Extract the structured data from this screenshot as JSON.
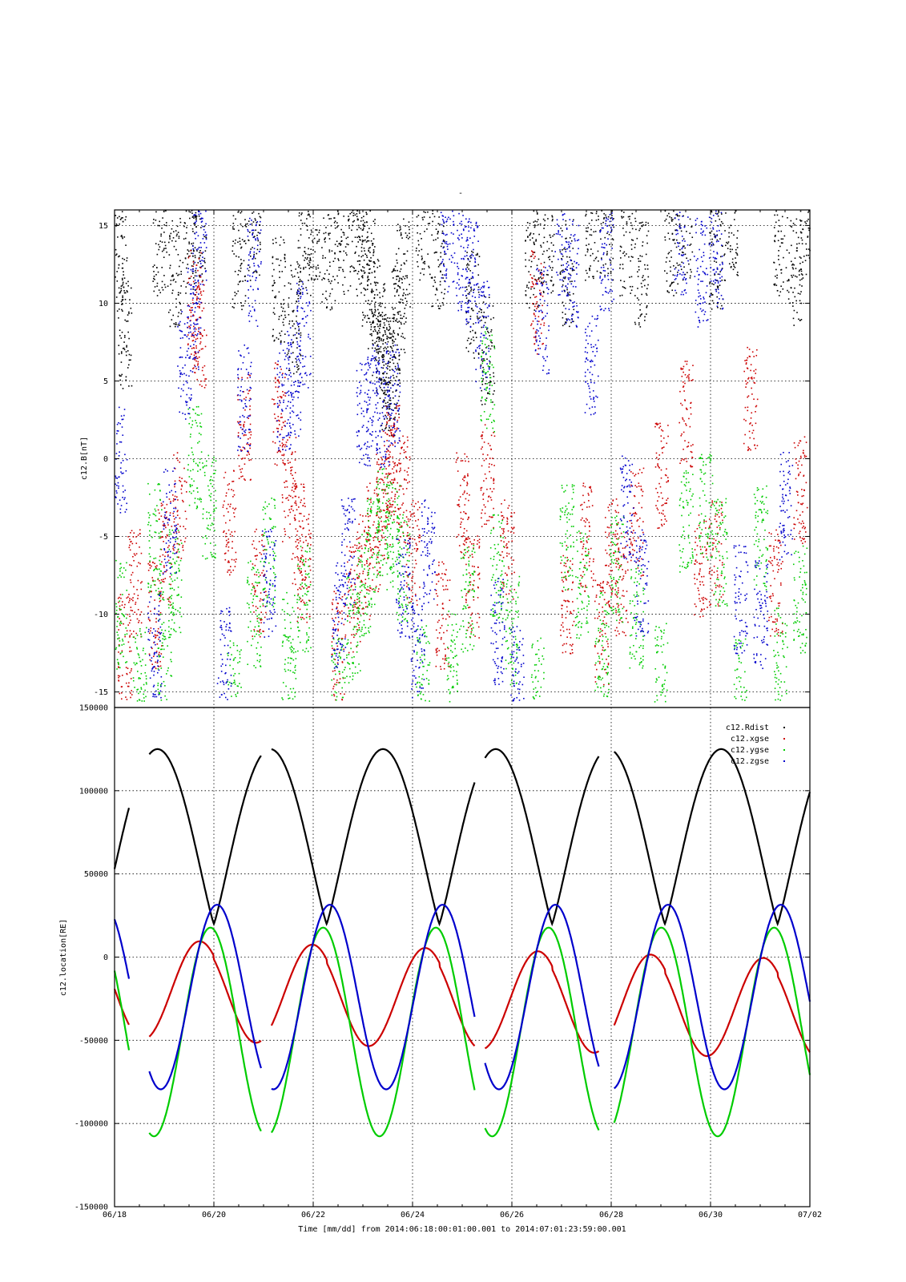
{
  "figure": {
    "top_title": "-",
    "xlabel": "Time [mm/dd]  from 2014:06:18:00:01:00.001  to  2014:07:01:23:59:00.001"
  },
  "chart_data": [
    {
      "type": "scatter",
      "ylabel": "c12.B[nT]",
      "xlim": [
        0,
        14
      ],
      "ylim": [
        -16,
        16
      ],
      "yticks": [
        -15,
        -10,
        -5,
        0,
        5,
        10,
        15
      ],
      "grid": true,
      "colors": [
        "#000000",
        "#cc0000",
        "#00cc00",
        "#0000cc"
      ],
      "note_values": "x in days since 06/18 00:00; sampled points approximate",
      "series": [
        {
          "color": "#000000",
          "x": [
            0.1,
            0.2,
            0.9,
            1.2,
            1.5,
            1.7,
            2.5,
            2.8,
            3.3,
            3.6,
            3.8,
            4.0,
            4.3,
            4.6,
            4.9,
            5.0,
            5.1,
            5.2,
            5.3,
            5.4,
            5.5,
            5.6,
            5.7,
            5.8,
            6.2,
            6.5,
            7.2,
            7.5,
            8.4,
            8.7,
            9.1,
            9.6,
            9.9,
            10.3,
            10.6,
            11.2,
            11.5,
            12.1,
            12.4,
            13.4,
            13.7,
            13.9
          ],
          "y": [
            13,
            8,
            14,
            12,
            14,
            15,
            13,
            15,
            11,
            9,
            14,
            15,
            13,
            14,
            15,
            14,
            12,
            10,
            8,
            6,
            5,
            6,
            9,
            12,
            15,
            13,
            10,
            7,
            13,
            14,
            12,
            15,
            15,
            14,
            12,
            14,
            15,
            13,
            15,
            14,
            12,
            15
          ]
        },
        {
          "color": "#cc0000",
          "x": [
            0.2,
            0.4,
            0.8,
            1.0,
            1.3,
            1.6,
            1.7,
            2.3,
            2.6,
            2.9,
            3.3,
            3.5,
            3.7,
            3.8,
            4.5,
            4.8,
            5.0,
            5.2,
            5.4,
            5.5,
            5.6,
            5.8,
            6.0,
            6.6,
            7.0,
            7.2,
            7.5,
            7.9,
            8.5,
            9.1,
            9.5,
            9.8,
            10.0,
            10.2,
            10.5,
            11.0,
            11.5,
            11.8,
            12.1,
            12.8,
            13.3,
            13.8
          ],
          "y": [
            -12,
            -8,
            -10,
            -6,
            -3,
            10,
            8,
            -4,
            2,
            -8,
            3,
            -2,
            -5,
            -7,
            -12,
            -9,
            -7,
            -5,
            -3,
            -1,
            0,
            -2,
            -6,
            -10,
            -3,
            -8,
            -1,
            -6,
            10,
            -9,
            -5,
            -11,
            -6,
            -8,
            -4,
            -1,
            3,
            -7,
            -6,
            4,
            -8,
            -2
          ]
        },
        {
          "color": "#00cc00",
          "x": [
            0.1,
            0.5,
            0.8,
            1.0,
            1.2,
            1.6,
            1.9,
            2.4,
            2.8,
            3.1,
            3.5,
            3.8,
            4.5,
            4.8,
            5.0,
            5.2,
            5.4,
            5.6,
            5.8,
            6.2,
            6.8,
            7.1,
            7.5,
            7.7,
            8.0,
            8.5,
            9.1,
            9.4,
            9.8,
            10.1,
            10.5,
            11.0,
            11.5,
            11.9,
            12.2,
            12.6,
            13.0,
            13.4,
            13.8
          ],
          "y": [
            -10,
            -14,
            -5,
            -12,
            -8,
            0,
            -3,
            -15,
            -10,
            -6,
            -12,
            -9,
            -15,
            -11,
            -8,
            -6,
            -4,
            -5,
            -7,
            -14,
            -13,
            -9,
            5,
            -7,
            -11,
            -15,
            -5,
            -8,
            -12,
            -7,
            -10,
            -14,
            -4,
            -3,
            -6,
            -15,
            -5,
            -13,
            -9
          ]
        },
        {
          "color": "#0000cc",
          "x": [
            0.1,
            0.8,
            1.1,
            1.4,
            1.6,
            1.7,
            2.2,
            2.6,
            2.8,
            3.1,
            3.4,
            3.6,
            3.8,
            4.5,
            4.7,
            5.0,
            5.2,
            5.4,
            5.6,
            5.8,
            6.1,
            6.3,
            6.7,
            7.0,
            7.2,
            7.4,
            7.7,
            8.1,
            8.6,
            9.0,
            9.2,
            9.6,
            9.9,
            10.3,
            10.6,
            11.4,
            11.8,
            12.1,
            12.6,
            13.0,
            13.5
          ],
          "y": [
            0,
            -12,
            -4,
            6,
            9,
            14,
            -13,
            4,
            12,
            -8,
            4,
            5,
            8,
            -10,
            -6,
            3,
            4,
            3,
            4,
            -8,
            -12,
            -6,
            14,
            13,
            12,
            8,
            -11,
            -14,
            9,
            14,
            12,
            6,
            13,
            -3,
            -8,
            14,
            12,
            13,
            -9,
            -10,
            -3
          ]
        }
      ]
    },
    {
      "type": "line",
      "ylabel": "c12.location[RE]",
      "xlim": [
        0,
        14
      ],
      "ylim": [
        -150000,
        150000
      ],
      "yticks": [
        -150000,
        -100000,
        -50000,
        0,
        50000,
        100000,
        150000
      ],
      "xticks": [
        "06/18",
        "06/20",
        "06/22",
        "06/24",
        "06/26",
        "06/28",
        "06/30",
        "07/02"
      ],
      "grid": true,
      "legend": "top-right",
      "orbit": {
        "start_perigee_day": 2.0,
        "period_days": 2.27,
        "gaps_days": [
          [
            0.3,
            0.7
          ],
          [
            2.95,
            3.15
          ],
          [
            7.25,
            7.45
          ],
          [
            9.75,
            10.05
          ]
        ]
      },
      "series": [
        {
          "name": "c12.Rdist",
          "color": "#000000",
          "apogee": 125000,
          "perigee": 20000
        },
        {
          "name": "c12.xgse",
          "color": "#cc0000",
          "x_range": [
            -60000,
            22000
          ]
        },
        {
          "name": "c12.ygse",
          "color": "#00cc00",
          "y_range": [
            -108000,
            20000
          ]
        },
        {
          "name": "c12.zgse",
          "color": "#0000cc",
          "z_range": [
            -76000,
            29000
          ]
        }
      ]
    }
  ]
}
